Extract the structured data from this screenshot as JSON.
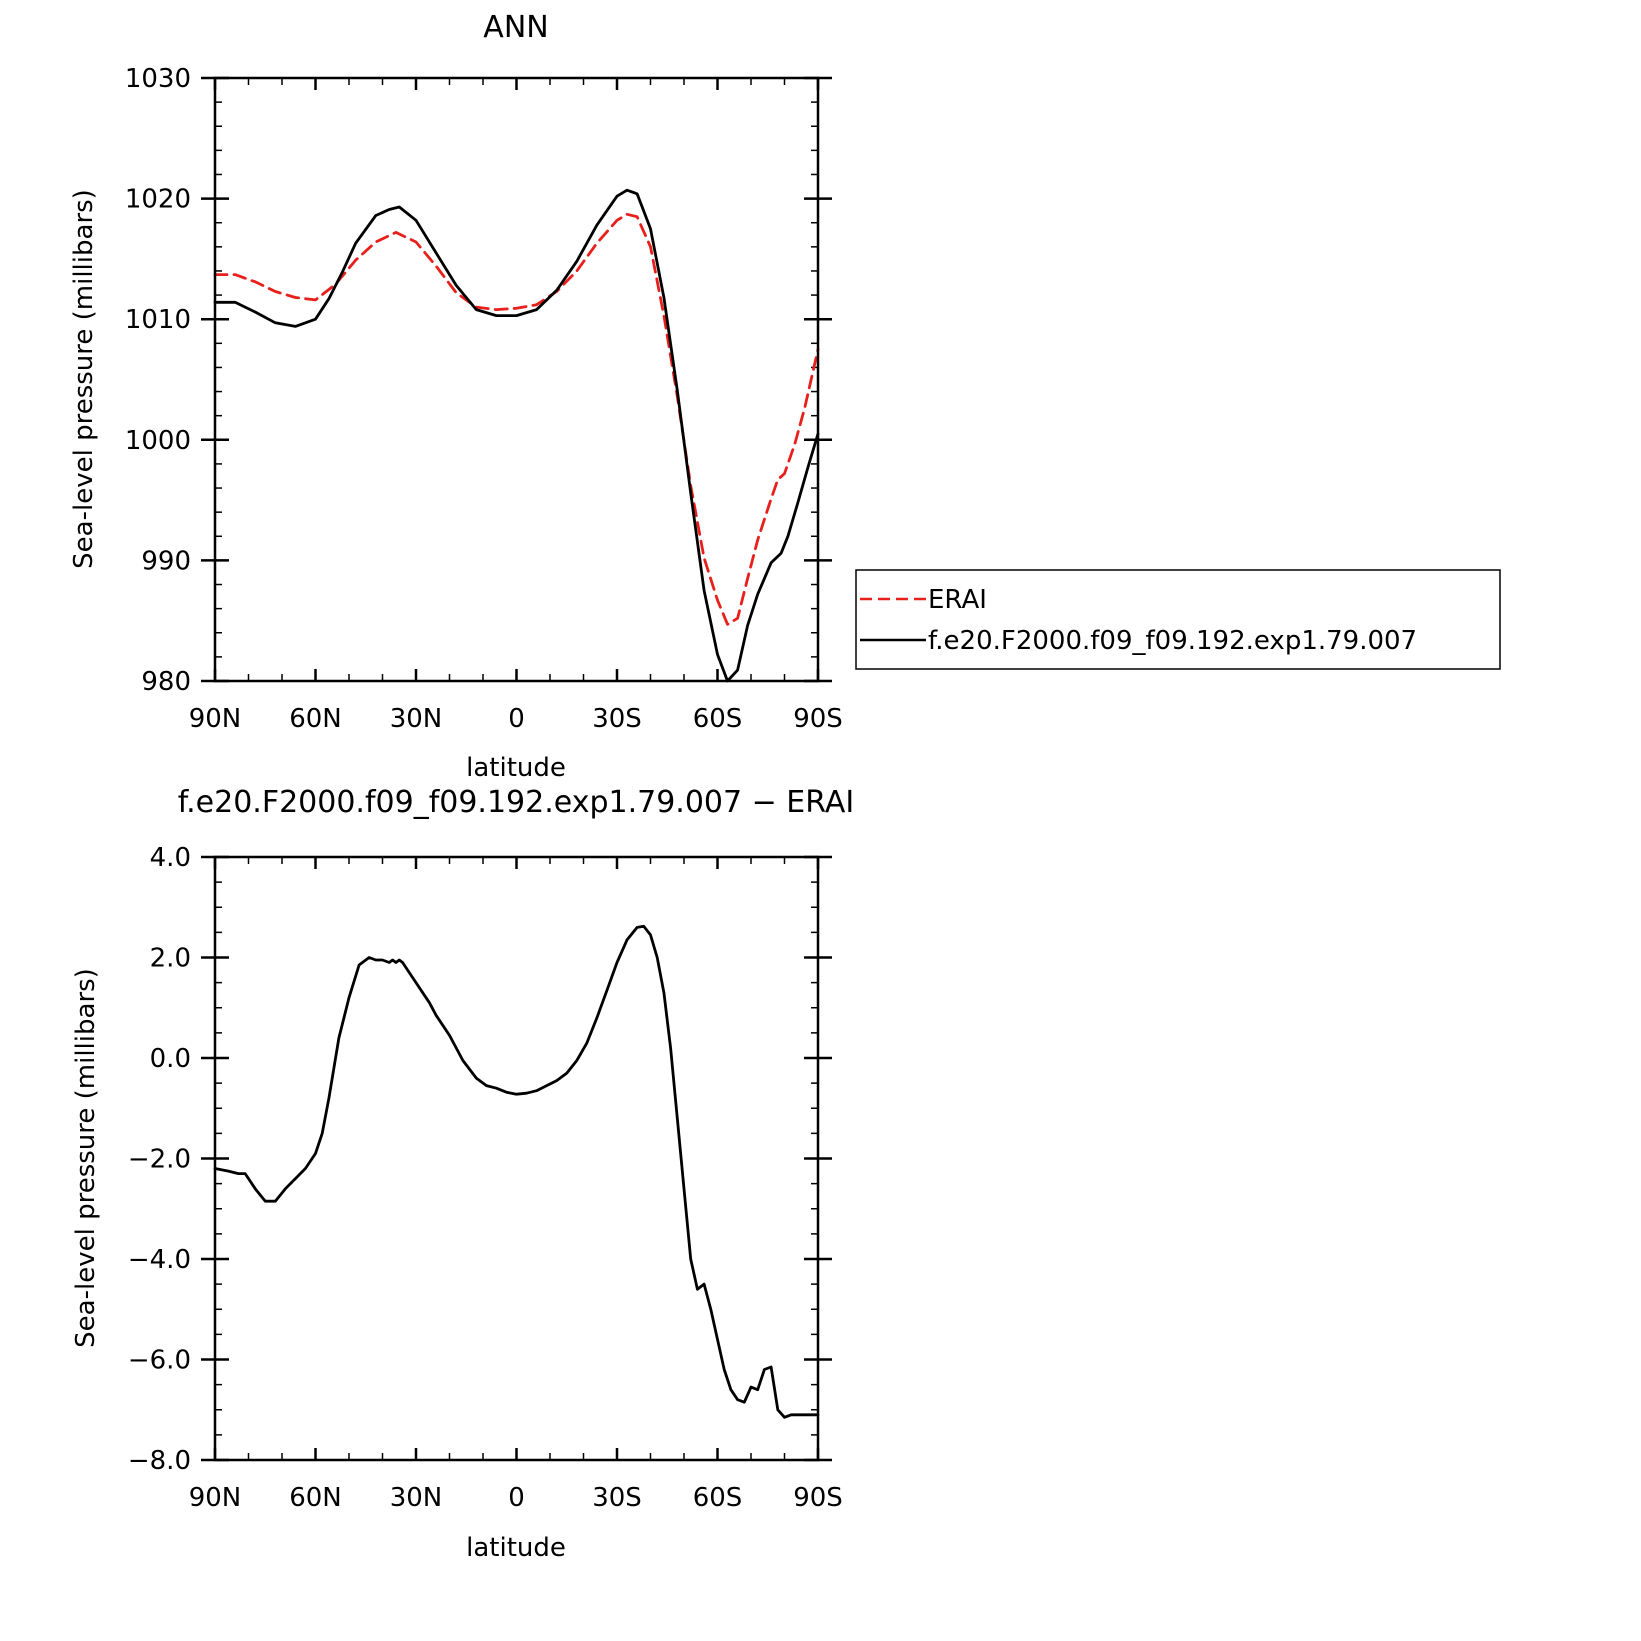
{
  "chart_data": [
    {
      "type": "line",
      "title": "ANN",
      "xlabel": "latitude",
      "ylabel": "Sea-level pressure (millibars)",
      "xlim": [
        90,
        -90
      ],
      "ylim": [
        980,
        1030
      ],
      "x_ticks": [
        90,
        60,
        30,
        0,
        -30,
        -60,
        -90
      ],
      "x_tick_labels": [
        "90N",
        "60N",
        "30N",
        "0",
        "30S",
        "60S",
        "90S"
      ],
      "y_ticks": [
        980,
        990,
        1000,
        1010,
        1020,
        1030
      ],
      "y_tick_labels": [
        "980",
        "990",
        "1000",
        "1010",
        "1020",
        "1030"
      ],
      "legend_position": "right",
      "series": [
        {
          "name": "ERAI",
          "color": "#e8201c",
          "style": "dashed",
          "x": [
            90,
            84,
            78,
            72,
            66,
            60,
            54,
            48,
            42,
            36,
            30,
            24,
            18,
            12,
            6,
            0,
            -6,
            -12,
            -18,
            -24,
            -30,
            -33,
            -36,
            -40,
            -44,
            -48,
            -52,
            -56,
            -60,
            -63,
            -66,
            -69,
            -72,
            -76,
            -78,
            -80,
            -83,
            -86,
            -90
          ],
          "y": [
            1013.7,
            1013.7,
            1013.1,
            1012.3,
            1011.8,
            1011.6,
            1012.9,
            1014.9,
            1016.4,
            1017.2,
            1016.4,
            1014.4,
            1012.2,
            1011.0,
            1010.8,
            1010.9,
            1011.2,
            1012.3,
            1014.0,
            1016.3,
            1018.2,
            1018.7,
            1018.5,
            1016.0,
            1010.3,
            1003.6,
            996.2,
            990.2,
            986.7,
            984.7,
            985.2,
            988.5,
            991.7,
            995.1,
            996.7,
            997.2,
            999.6,
            1002.6,
            1007.5
          ]
        },
        {
          "name": "f.e20.F2000.f09_f09.192.exp1.79.007",
          "color": "#000000",
          "style": "solid",
          "x": [
            90,
            84,
            78,
            72,
            66,
            60,
            56,
            52,
            48,
            42,
            38,
            35,
            30,
            24,
            18,
            12,
            6,
            0,
            -6,
            -12,
            -18,
            -24,
            -30,
            -33,
            -36,
            -40,
            -44,
            -48,
            -52,
            -56,
            -60,
            -63,
            -66,
            -69,
            -72,
            -76,
            -79,
            -81,
            -84,
            -87,
            -90
          ],
          "y": [
            1011.4,
            1011.4,
            1010.6,
            1009.7,
            1009.4,
            1010.0,
            1011.7,
            1013.9,
            1016.3,
            1018.6,
            1019.1,
            1019.3,
            1018.2,
            1015.5,
            1012.8,
            1010.8,
            1010.3,
            1010.3,
            1010.8,
            1012.4,
            1014.8,
            1017.8,
            1020.2,
            1020.7,
            1020.4,
            1017.5,
            1011.8,
            1004.1,
            995.6,
            987.5,
            982.2,
            980.0,
            980.9,
            984.6,
            987.2,
            989.8,
            990.6,
            992.0,
            994.8,
            997.7,
            1000.5
          ]
        }
      ]
    },
    {
      "type": "line",
      "title": "f.e20.F2000.f09_f09.192.exp1.79.007 − ERAI",
      "xlabel": "latitude",
      "ylabel": "Sea-level pressure (millibars)",
      "xlim": [
        90,
        -90
      ],
      "ylim": [
        -8.0,
        4.0
      ],
      "x_ticks": [
        90,
        60,
        30,
        0,
        -30,
        -60,
        -90
      ],
      "x_tick_labels": [
        "90N",
        "60N",
        "30N",
        "0",
        "30S",
        "60S",
        "90S"
      ],
      "y_ticks": [
        -8.0,
        -6.0,
        -4.0,
        -2.0,
        0.0,
        2.0,
        4.0
      ],
      "y_tick_labels": [
        "−8.0",
        "−6.0",
        "−4.0",
        "−2.0",
        "0.0",
        "2.0",
        "4.0"
      ],
      "series": [
        {
          "color": "#000000",
          "style": "solid",
          "x": [
            90,
            86,
            83,
            81,
            78,
            75,
            72,
            69,
            66,
            63,
            60,
            58,
            56,
            53,
            50,
            47,
            44,
            42,
            40,
            38,
            37,
            36,
            35,
            34,
            32,
            30,
            28,
            26,
            24,
            22,
            20,
            16,
            12,
            9,
            6,
            3,
            0,
            -3,
            -6,
            -9,
            -12,
            -15,
            -18,
            -21,
            -24,
            -27,
            -30,
            -33,
            -36,
            -38,
            -40,
            -42,
            -44,
            -46,
            -48,
            -50,
            -52,
            -54,
            -56,
            -58,
            -60,
            -62,
            -64,
            -66,
            -68,
            -70,
            -72,
            -74,
            -76,
            -78,
            -80,
            -82,
            -84,
            -86,
            -88,
            -89,
            -90
          ],
          "y": [
            -2.2,
            -2.25,
            -2.3,
            -2.3,
            -2.6,
            -2.85,
            -2.85,
            -2.6,
            -2.4,
            -2.2,
            -1.9,
            -1.5,
            -0.8,
            0.4,
            1.2,
            1.85,
            2.0,
            1.95,
            1.95,
            1.9,
            1.95,
            1.9,
            1.95,
            1.9,
            1.7,
            1.5,
            1.3,
            1.1,
            0.85,
            0.65,
            0.45,
            -0.05,
            -0.4,
            -0.55,
            -0.6,
            -0.68,
            -0.72,
            -0.7,
            -0.65,
            -0.55,
            -0.45,
            -0.3,
            -0.05,
            0.3,
            0.8,
            1.35,
            1.9,
            2.35,
            2.6,
            2.62,
            2.45,
            2.0,
            1.3,
            0.2,
            -1.2,
            -2.6,
            -4.0,
            -4.6,
            -4.5,
            -5.0,
            -5.6,
            -6.2,
            -6.6,
            -6.8,
            -6.85,
            -6.55,
            -6.6,
            -6.2,
            -6.15,
            -7.0,
            -7.15,
            -7.1,
            -7.1,
            -7.1,
            -7.1,
            -7.1,
            -7.1
          ]
        }
      ]
    }
  ]
}
